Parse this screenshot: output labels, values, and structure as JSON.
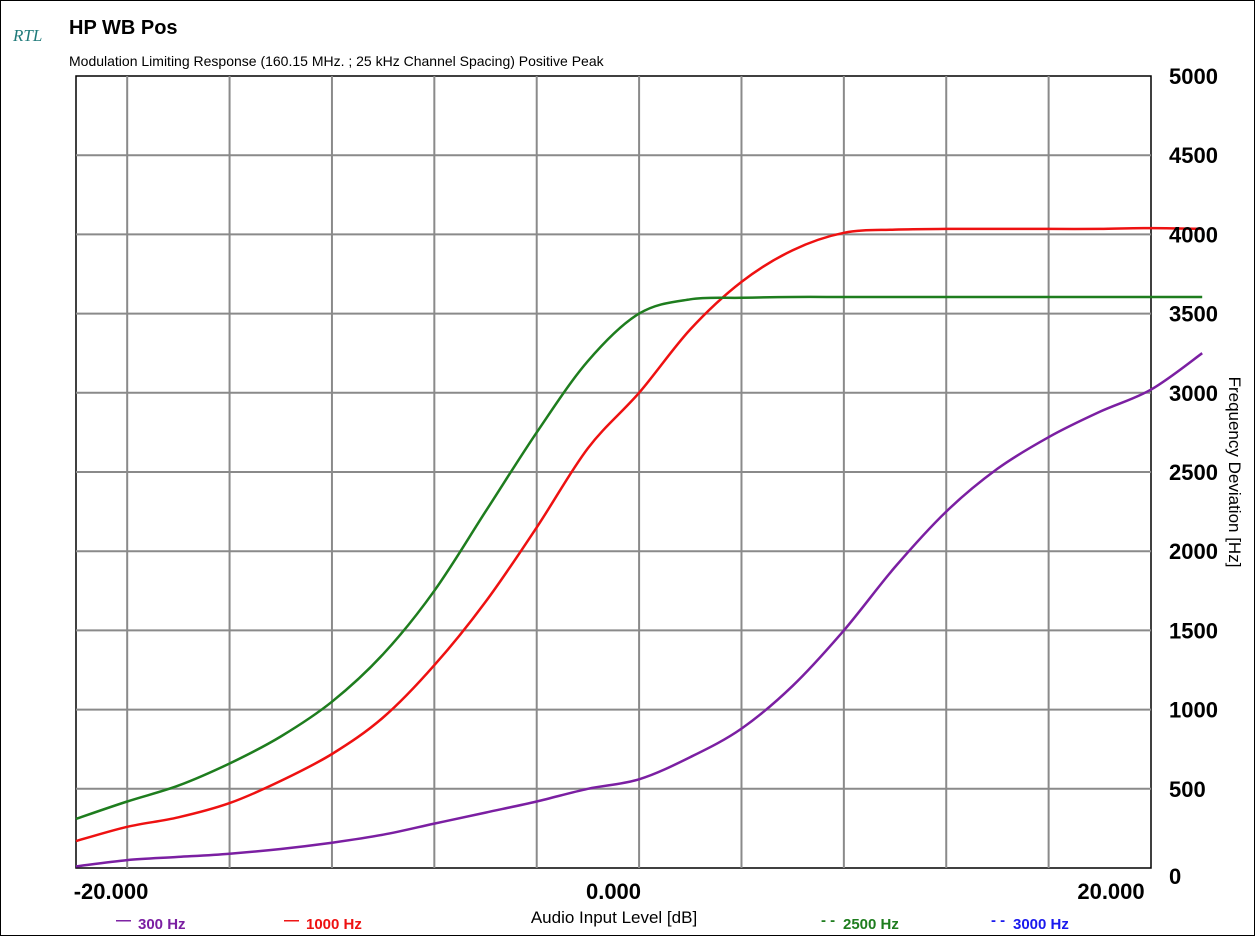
{
  "chart_data": {
    "type": "line",
    "logo": "RTL",
    "title": "HP WB Pos",
    "subtitle": "Modulation Limiting Response (160.15 MHz. ; 25 kHz Channel Spacing) Positive Peak",
    "xlabel": "Audio Input Level [dB]",
    "ylabel": "Frequency Deviation [Hz]",
    "xlim": [
      -22,
      20
    ],
    "ylim": [
      0,
      5000
    ],
    "x_ticks": [
      "-20.000",
      "0.000",
      "20.000"
    ],
    "y_ticks": [
      "0",
      "500",
      "1000",
      "1500",
      "2000",
      "2500",
      "3000",
      "3500",
      "4000",
      "4500",
      "5000"
    ],
    "grid": true,
    "legend_position": "bottom",
    "series": [
      {
        "name": "300 Hz",
        "color": "#7b1fa2",
        "legend_marker": "—",
        "points": [
          [
            -22,
            10
          ],
          [
            -20,
            50
          ],
          [
            -18,
            70
          ],
          [
            -16,
            90
          ],
          [
            -14,
            120
          ],
          [
            -12,
            160
          ],
          [
            -10,
            210
          ],
          [
            -8,
            280
          ],
          [
            -6,
            350
          ],
          [
            -4,
            420
          ],
          [
            -2,
            500
          ],
          [
            0,
            560
          ],
          [
            2,
            700
          ],
          [
            4,
            880
          ],
          [
            6,
            1150
          ],
          [
            8,
            1500
          ],
          [
            10,
            1900
          ],
          [
            12,
            2250
          ],
          [
            14,
            2520
          ],
          [
            16,
            2720
          ],
          [
            18,
            2880
          ],
          [
            20,
            3020
          ],
          [
            22,
            3250
          ]
        ]
      },
      {
        "name": "1000 Hz",
        "color": "#ee1111",
        "legend_marker": "—",
        "points": [
          [
            -22,
            170
          ],
          [
            -20,
            260
          ],
          [
            -18,
            320
          ],
          [
            -16,
            410
          ],
          [
            -14,
            550
          ],
          [
            -12,
            720
          ],
          [
            -10,
            950
          ],
          [
            -8,
            1280
          ],
          [
            -6,
            1680
          ],
          [
            -4,
            2150
          ],
          [
            -2,
            2650
          ],
          [
            0,
            3000
          ],
          [
            2,
            3400
          ],
          [
            4,
            3700
          ],
          [
            6,
            3900
          ],
          [
            8,
            4010
          ],
          [
            10,
            4030
          ],
          [
            12,
            4035
          ],
          [
            14,
            4035
          ],
          [
            16,
            4035
          ],
          [
            18,
            4035
          ],
          [
            20,
            4040
          ],
          [
            22,
            4035
          ]
        ]
      },
      {
        "name": "2500 Hz",
        "color": "#1e7d1e",
        "legend_marker": "- -",
        "points": [
          [
            -22,
            310
          ],
          [
            -20,
            420
          ],
          [
            -18,
            520
          ],
          [
            -16,
            660
          ],
          [
            -14,
            830
          ],
          [
            -12,
            1050
          ],
          [
            -10,
            1350
          ],
          [
            -8,
            1750
          ],
          [
            -6,
            2250
          ],
          [
            -4,
            2750
          ],
          [
            -2,
            3200
          ],
          [
            0,
            3500
          ],
          [
            2,
            3590
          ],
          [
            4,
            3600
          ],
          [
            6,
            3605
          ],
          [
            8,
            3605
          ],
          [
            10,
            3605
          ],
          [
            12,
            3605
          ],
          [
            14,
            3605
          ],
          [
            16,
            3605
          ],
          [
            18,
            3605
          ],
          [
            20,
            3605
          ],
          [
            22,
            3605
          ]
        ]
      },
      {
        "name": "3000 Hz",
        "color": "#1a1aee",
        "legend_marker": "- -",
        "points": []
      }
    ]
  }
}
